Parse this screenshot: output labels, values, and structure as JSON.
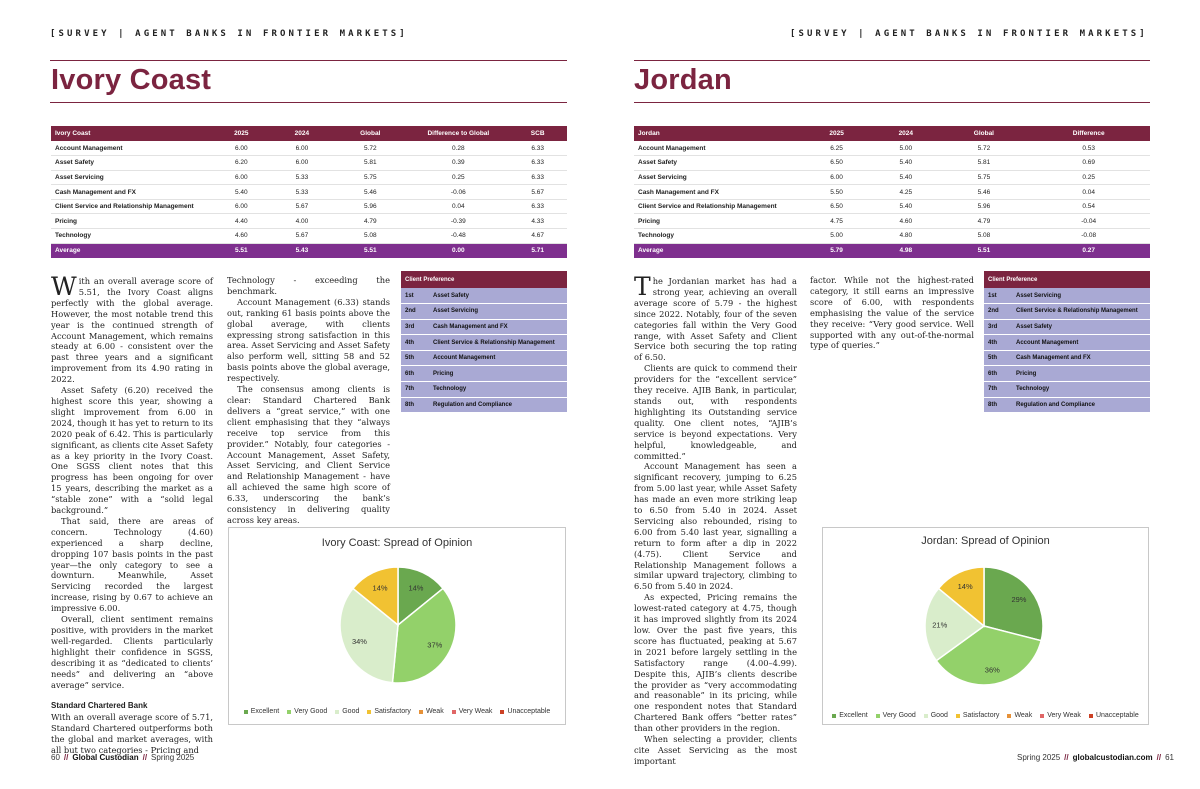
{
  "header": {
    "survey_label": "[SURVEY | AGENT BANKS IN FRONTIER MARKETS]"
  },
  "left": {
    "title": "Ivory Coast",
    "table": {
      "headers": [
        "Ivory Coast",
        "2025",
        "2024",
        "Global",
        "Difference to Global",
        "SCB"
      ],
      "rows": [
        [
          "Account Management",
          "6.00",
          "6.00",
          "5.72",
          "0.28",
          "6.33"
        ],
        [
          "Asset Safety",
          "6.20",
          "6.00",
          "5.81",
          "0.39",
          "6.33"
        ],
        [
          "Asset Servicing",
          "6.00",
          "5.33",
          "5.75",
          "0.25",
          "6.33"
        ],
        [
          "Cash Management and FX",
          "5.40",
          "5.33",
          "5.46",
          "-0.06",
          "5.67"
        ],
        [
          "Client Service and Relationship Management",
          "6.00",
          "5.67",
          "5.96",
          "0.04",
          "6.33"
        ],
        [
          "Pricing",
          "4.40",
          "4.00",
          "4.79",
          "-0.39",
          "4.33"
        ],
        [
          "Technology",
          "4.60",
          "5.67",
          "5.08",
          "-0.48",
          "4.67"
        ]
      ],
      "average": [
        "Average",
        "5.51",
        "5.43",
        "5.51",
        "0.00",
        "5.71"
      ]
    },
    "col1": {
      "dropcap": "W",
      "p1": "ith an overall average score of 5.51, the Ivory Coast aligns perfectly with the global average. However, the most notable trend this year is the continued strength of Account Management, which remains steady at 6.00 - consistent over the past three years and a significant improvement from its 4.90 rating in 2022.",
      "p2": "Asset Safety (6.20) received the highest score this year, showing a slight improvement from 6.00 in 2024, though it has yet to return to its 2020 peak of 6.42. This is particularly significant, as clients cite Asset Safety as a key priority in the Ivory Coast. One SGSS client notes that this progress has been ongoing for over 15 years, describing the market as a “stable zone” with a “solid legal background.”",
      "p3": "That said, there are areas of concern. Technology (4.60) experienced a sharp decline, dropping 107 basis points in the past year—the only category to see a downturn. Meanwhile, Asset Servicing recorded the largest increase, rising by 0.67 to achieve an impressive 6.00.",
      "p4": "Overall, client sentiment remains positive, with providers in the market well-regarded. Clients particularly highlight their confidence in SGSS, describing it as “dedicated to clients’ needs” and delivering an “above average” service.",
      "subhead": "Standard Chartered Bank",
      "p5": "With an overall average score of 5.71, Standard Chartered outperforms both the global and market averages, with all but two categories - Pricing and"
    },
    "col2": {
      "p1": "Technology - exceeding the benchmark.",
      "p2": "Account Management (6.33) stands out, ranking 61 basis points above the global average, with clients expressing strong satisfaction in this area. Asset Servicing and Asset Safety also perform well, sitting 58 and 52 basis points above the global average, respectively.",
      "p3": "The consensus among clients is clear: Standard Chartered Bank delivers a “great service,” with one client emphasising that they “always receive top service from this provider.” Notably, four categories - Account Management, Asset Safety, Asset Servicing, and Client Service and Relationship Management - have all achieved the same high score of 6.33, underscoring the bank’s consistency in delivering quality across key areas."
    },
    "preference": {
      "header": "Client Preference",
      "rows": [
        [
          "1st",
          "Asset Safety"
        ],
        [
          "2nd",
          "Asset Servicing"
        ],
        [
          "3rd",
          "Cash Management and FX"
        ],
        [
          "4th",
          "Client Service & Relationship Management"
        ],
        [
          "5th",
          "Account Management"
        ],
        [
          "6th",
          "Pricing"
        ],
        [
          "7th",
          "Technology"
        ],
        [
          "8th",
          "Regulation and Compliance"
        ]
      ]
    },
    "chart_data": {
      "type": "pie",
      "title": "Ivory Coast: Spread of Opinion",
      "categories": [
        "Excellent",
        "Very Good",
        "Good",
        "Satisfactory",
        "Weak",
        "Very Weak",
        "Unacceptable"
      ],
      "values": [
        14,
        37,
        34,
        14,
        0,
        0,
        0
      ],
      "data_labels": [
        "14%",
        "37%",
        "34%",
        "14%",
        "",
        "",
        ""
      ],
      "colors": [
        "#6aa84f",
        "#93d16a",
        "#d9edcb",
        "#f1c232",
        "#e69138",
        "#e06666",
        "#cc4125"
      ],
      "legend": "bottom"
    },
    "footer": {
      "page": "60",
      "publication": "Global Custodian",
      "issue": "Spring 2025"
    }
  },
  "right": {
    "title": "Jordan",
    "table": {
      "headers": [
        "Jordan",
        "2025",
        "2024",
        "Global",
        "Difference"
      ],
      "rows": [
        [
          "Account Management",
          "6.25",
          "5.00",
          "5.72",
          "0.53"
        ],
        [
          "Asset Safety",
          "6.50",
          "5.40",
          "5.81",
          "0.69"
        ],
        [
          "Asset Servicing",
          "6.00",
          "5.40",
          "5.75",
          "0.25"
        ],
        [
          "Cash Management and FX",
          "5.50",
          "4.25",
          "5.46",
          "0.04"
        ],
        [
          "Client Service and Relationship Management",
          "6.50",
          "5.40",
          "5.96",
          "0.54"
        ],
        [
          "Pricing",
          "4.75",
          "4.60",
          "4.79",
          "-0.04"
        ],
        [
          "Technology",
          "5.00",
          "4.80",
          "5.08",
          "-0.08"
        ]
      ],
      "average": [
        "Average",
        "5.79",
        "4.98",
        "5.51",
        "0.27"
      ]
    },
    "col1": {
      "dropcap": "T",
      "p1": "he Jordanian market has had a strong year, achieving an overall average score of 5.79 - the highest since 2022. Notably, four of the seven categories fall within the Very Good range, with Asset Safety and Client Service both securing the top rating of 6.50.",
      "p2": "Clients are quick to commend their providers for the “excellent service” they receive. AJIB Bank, in particular, stands out, with respondents highlighting its Outstanding service quality. One client notes, “AJIB’s service is beyond expectations. Very helpful, knowledgeable, and committed.”",
      "p3": "Account Management has seen a significant recovery, jumping to 6.25 from 5.00 last year, while Asset Safety has made an even more striking leap to 6.50 from 5.40 in 2024. Asset Servicing also rebounded, rising to 6.00 from 5.40 last year, signalling a return to form after a dip in 2022 (4.75). Client Service and Relationship Management follows a similar upward trajectory, climbing to 6.50 from 5.40 in 2024.",
      "p4": "As expected, Pricing remains the lowest-rated category at 4.75, though it has improved slightly from its 2024 low. Over the past five years, this score has fluctuated, peaking at 5.67 in 2021 before largely settling in the Satisfactory range (4.00–4.99). Despite this, AJIB’s clients describe the provider as “very accommodating and reasonable” in its pricing, while one respondent notes that Standard Chartered Bank offers “better rates” than other providers in the region.",
      "p5": "When selecting a provider, clients cite Asset Servicing as the most important"
    },
    "col2": {
      "p1": "factor. While not the highest-rated category, it still earns an impressive score of 6.00, with respondents emphasising the value of the service they receive: “Very good service. Well supported with any out-of-the-normal type of queries.”"
    },
    "preference": {
      "header": "Client Preference",
      "rows": [
        [
          "1st",
          "Asset Servicing"
        ],
        [
          "2nd",
          "Client Service & Relationship Management"
        ],
        [
          "3rd",
          "Asset Safety"
        ],
        [
          "4th",
          "Account Management"
        ],
        [
          "5th",
          "Cash Management and FX"
        ],
        [
          "6th",
          "Pricing"
        ],
        [
          "7th",
          "Technology"
        ],
        [
          "8th",
          "Regulation and Compliance"
        ]
      ]
    },
    "chart_data": {
      "type": "pie",
      "title": "Jordan: Spread of Opinion",
      "categories": [
        "Excellent",
        "Very Good",
        "Good",
        "Satisfactory",
        "Weak",
        "Very Weak",
        "Unacceptable"
      ],
      "values": [
        29,
        36,
        21,
        14,
        0,
        0,
        0
      ],
      "data_labels": [
        "29%",
        "36%",
        "21%",
        "14%",
        "",
        "",
        ""
      ],
      "colors": [
        "#6aa84f",
        "#93d16a",
        "#d9edcb",
        "#f1c232",
        "#e69138",
        "#e06666",
        "#cc4125"
      ],
      "legend": "bottom"
    },
    "footer": {
      "page": "61",
      "issue": "Spring 2025",
      "website": "globalcustodian.com"
    }
  }
}
